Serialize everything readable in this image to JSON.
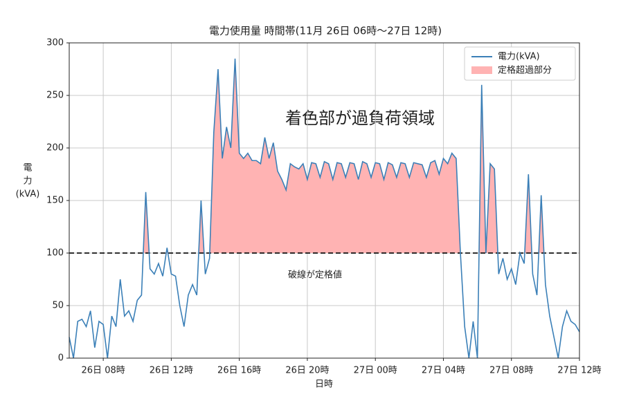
{
  "chart_data": {
    "type": "line",
    "title": "電力使用量 時間帯(11月 26日 06時～27日 12時)",
    "xlabel": "日時",
    "ylabel_lines": [
      "電",
      "力",
      "(kVA)"
    ],
    "annotations": [
      "着色部が過負荷領域",
      "破線が定格値"
    ],
    "x": [
      6,
      6.25,
      6.5,
      6.75,
      7,
      7.25,
      7.5,
      7.75,
      8,
      8.25,
      8.5,
      8.75,
      9,
      9.25,
      9.5,
      9.75,
      10,
      10.25,
      10.5,
      10.75,
      11,
      11.25,
      11.5,
      11.75,
      12,
      12.25,
      12.5,
      12.75,
      13,
      13.25,
      13.5,
      13.75,
      14,
      14.25,
      14.5,
      14.75,
      15,
      15.25,
      15.5,
      15.75,
      16,
      16.25,
      16.5,
      16.75,
      17,
      17.25,
      17.5,
      17.75,
      18,
      18.25,
      18.5,
      18.75,
      19,
      19.25,
      19.5,
      19.75,
      20,
      20.25,
      20.5,
      20.75,
      21,
      21.25,
      21.5,
      21.75,
      22,
      22.25,
      22.5,
      22.75,
      23,
      23.25,
      23.5,
      23.75,
      24,
      24.25,
      24.5,
      24.75,
      25,
      25.25,
      25.5,
      25.75,
      26,
      26.25,
      26.5,
      26.75,
      27,
      27.25,
      27.5,
      27.75,
      28,
      28.25,
      28.5,
      28.75,
      29,
      29.25,
      29.5,
      29.75,
      30,
      30.25,
      30.5,
      30.75,
      31,
      31.25,
      31.5,
      31.75,
      32,
      32.25,
      32.5,
      32.75,
      33,
      33.25,
      33.5,
      33.75,
      34,
      34.25,
      34.5,
      34.75,
      35,
      35.25,
      35.5,
      35.75,
      36
    ],
    "series": [
      {
        "name": "電力(kVA)",
        "color": "#3a7fb7",
        "values": [
          20,
          0,
          35,
          37,
          30,
          45,
          10,
          35,
          32,
          0,
          40,
          30,
          75,
          40,
          45,
          35,
          55,
          60,
          158,
          85,
          80,
          90,
          78,
          105,
          80,
          78,
          50,
          30,
          60,
          70,
          60,
          150,
          80,
          95,
          215,
          275,
          190,
          220,
          200,
          285,
          195,
          190,
          195,
          188,
          188,
          185,
          210,
          190,
          205,
          178,
          170,
          160,
          185,
          182,
          180,
          185,
          170,
          186,
          185,
          172,
          187,
          185,
          170,
          186,
          185,
          172,
          186,
          185,
          170,
          187,
          185,
          172,
          186,
          185,
          170,
          186,
          184,
          172,
          186,
          185,
          172,
          186,
          185,
          184,
          172,
          186,
          188,
          175,
          190,
          185,
          195,
          190,
          100,
          30,
          0,
          35,
          0,
          260,
          100,
          185,
          180,
          80,
          95,
          75,
          85,
          70,
          100,
          90,
          175,
          80,
          60,
          155,
          70,
          40,
          20,
          0,
          30,
          45,
          35,
          32,
          25
        ]
      }
    ],
    "fill_name": "定格超過部分",
    "fill_color": "#ffb3b3",
    "threshold": 100,
    "xlim": [
      6,
      36
    ],
    "xticks": [
      {
        "value": 8,
        "label": "26日 08時"
      },
      {
        "value": 12,
        "label": "26日 12時"
      },
      {
        "value": 16,
        "label": "26日 16時"
      },
      {
        "value": 20,
        "label": "26日 20時"
      },
      {
        "value": 24,
        "label": "27日 00時"
      },
      {
        "value": 28,
        "label": "27日 04時"
      },
      {
        "value": 32,
        "label": "27日 08時"
      },
      {
        "value": 36,
        "label": "27日 12時"
      }
    ],
    "ylim": [
      0,
      300
    ],
    "yticks": [
      0,
      50,
      100,
      150,
      200,
      250,
      300
    ],
    "grid": true,
    "legend": "upper right"
  }
}
